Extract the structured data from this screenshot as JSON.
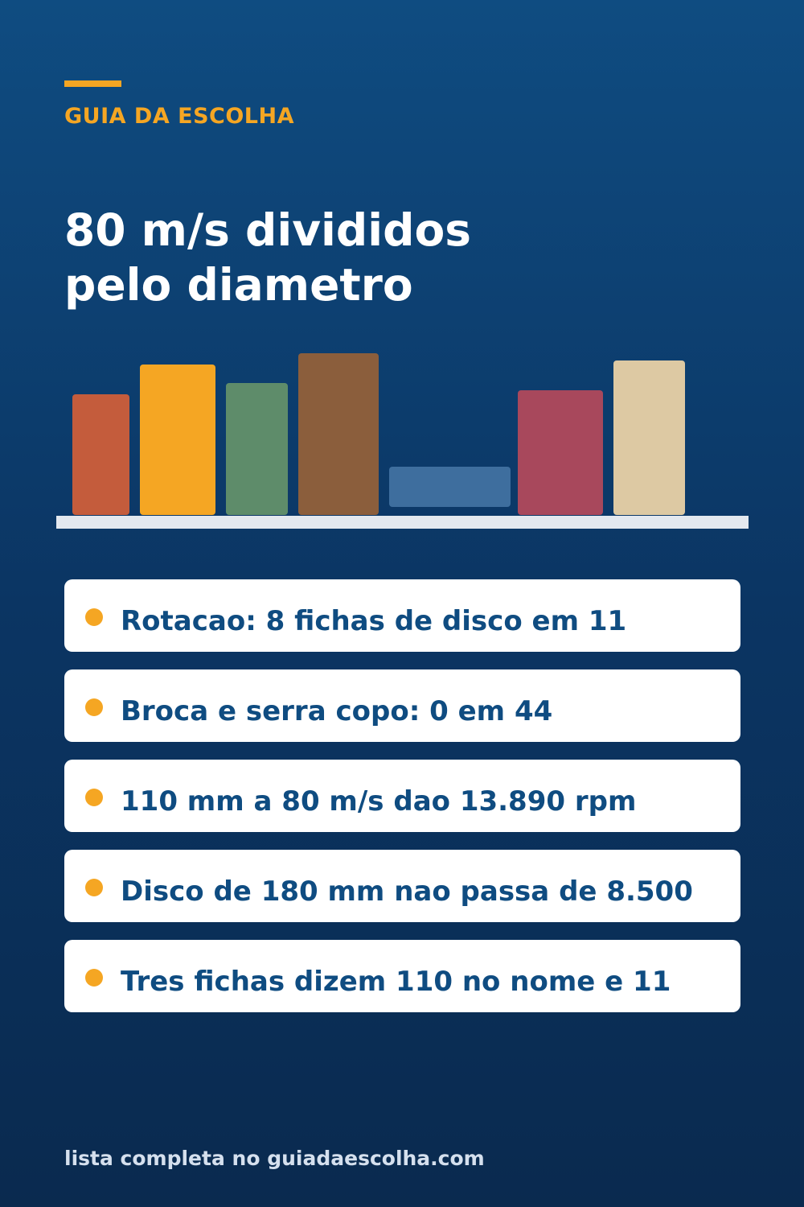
{
  "brand": "GUIA DA ESCOLHA",
  "headline": {
    "line1": "80 m/s divididos",
    "line2": "pelo diametro"
  },
  "shelf": {
    "books": [
      {
        "color": "#c45c3c"
      },
      {
        "color": "#f5a623"
      },
      {
        "color": "#5e8c6a"
      },
      {
        "color": "#8b5e3c"
      },
      {
        "color": "#3e6e9e",
        "orientation": "lying"
      },
      {
        "color": "#a8485c"
      },
      {
        "color": "#ddc9a3"
      }
    ]
  },
  "facts": [
    {
      "text": "Rotacao: 8 fichas de disco em 11"
    },
    {
      "text": "Broca e serra copo: 0 em 44"
    },
    {
      "text": "110 mm a 80 m/s dao 13.890 rpm"
    },
    {
      "text": "Disco de 180 mm nao passa de 8.500"
    },
    {
      "text": "Tres fichas dizem 110 no nome e 11"
    }
  ],
  "footer": "lista completa no guiadaescolha.com",
  "colors": {
    "accent": "#f5a623",
    "primary_text": "#0f4c81",
    "background_top": "#0f4c81",
    "background_bottom": "#0a2a4f"
  }
}
